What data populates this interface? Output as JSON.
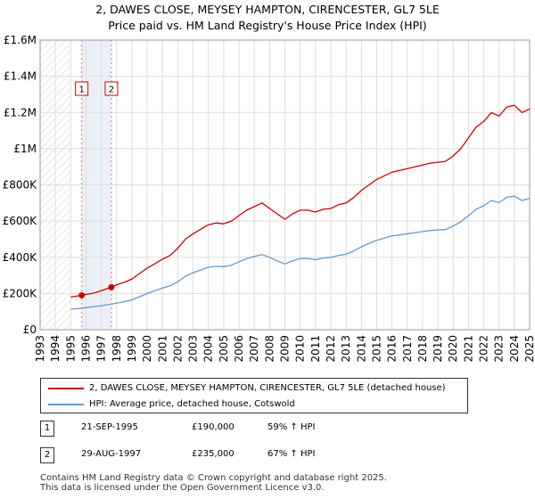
{
  "chart_data": {
    "type": "line",
    "title": "2, DAWES CLOSE, MEYSEY HAMPTON, CIRENCESTER, GL7 5LE",
    "subtitle": "Price paid vs. HM Land Registry's House Price Index (HPI)",
    "xlabel": "",
    "ylabel": "",
    "xlim": [
      1993,
      2025
    ],
    "ylim": [
      0,
      1600000
    ],
    "x_ticks": [
      "1993",
      "1994",
      "1995",
      "1996",
      "1997",
      "1998",
      "1999",
      "2000",
      "2001",
      "2002",
      "2003",
      "2004",
      "2005",
      "2006",
      "2007",
      "2008",
      "2009",
      "2010",
      "2011",
      "2012",
      "2013",
      "2014",
      "2015",
      "2016",
      "2017",
      "2018",
      "2019",
      "2020",
      "2021",
      "2022",
      "2023",
      "2024",
      "2025"
    ],
    "y_ticks": [
      {
        "value": 0,
        "label": "£0"
      },
      {
        "value": 200000,
        "label": "£200K"
      },
      {
        "value": 400000,
        "label": "£400K"
      },
      {
        "value": 600000,
        "label": "£600K"
      },
      {
        "value": 800000,
        "label": "£800K"
      },
      {
        "value": 1000000,
        "label": "£1M"
      },
      {
        "value": 1200000,
        "label": "£1.2M"
      },
      {
        "value": 1400000,
        "label": "£1.4M"
      },
      {
        "value": 1600000,
        "label": "£1.6M"
      }
    ],
    "grid": true,
    "shaded_before": 1995.0,
    "series": [
      {
        "name": "2, DAWES CLOSE, MEYSEY HAMPTON, CIRENCESTER, GL7 5LE (detached house)",
        "color": "#cc0000",
        "x": [
          1995.0,
          1995.72,
          1996.0,
          1996.5,
          1997.0,
          1997.66,
          1998.0,
          1998.5,
          1999.0,
          1999.5,
          2000.0,
          2000.5,
          2001.0,
          2001.5,
          2002.0,
          2002.5,
          2003.0,
          2003.5,
          2004.0,
          2004.5,
          2005.0,
          2005.5,
          2006.0,
          2006.5,
          2007.0,
          2007.5,
          2008.0,
          2008.5,
          2009.0,
          2009.5,
          2010.0,
          2010.5,
          2011.0,
          2011.5,
          2012.0,
          2012.5,
          2013.0,
          2013.5,
          2014.0,
          2014.5,
          2015.0,
          2015.5,
          2016.0,
          2016.5,
          2017.0,
          2017.5,
          2018.0,
          2018.5,
          2019.0,
          2019.5,
          2020.0,
          2020.5,
          2021.0,
          2021.5,
          2022.0,
          2022.5,
          2023.0,
          2023.5,
          2024.0,
          2024.5,
          2025.0
        ],
        "values": [
          180000,
          190000,
          195000,
          202000,
          215000,
          235000,
          248000,
          262000,
          280000,
          310000,
          340000,
          365000,
          390000,
          410000,
          450000,
          500000,
          530000,
          555000,
          580000,
          590000,
          585000,
          600000,
          630000,
          660000,
          680000,
          700000,
          670000,
          640000,
          610000,
          640000,
          660000,
          660000,
          650000,
          665000,
          670000,
          690000,
          700000,
          730000,
          770000,
          800000,
          830000,
          850000,
          870000,
          880000,
          890000,
          900000,
          910000,
          920000,
          925000,
          930000,
          960000,
          1000000,
          1060000,
          1120000,
          1150000,
          1200000,
          1180000,
          1230000,
          1240000,
          1200000,
          1220000
        ]
      },
      {
        "name": "HPI: Average price, detached house, Cotswold",
        "color": "#6699cc",
        "x": [
          1995.0,
          1995.72,
          1996.0,
          1996.5,
          1997.0,
          1997.66,
          1998.0,
          1998.5,
          1999.0,
          1999.5,
          2000.0,
          2000.5,
          2001.0,
          2001.5,
          2002.0,
          2002.5,
          2003.0,
          2003.5,
          2004.0,
          2004.5,
          2005.0,
          2005.5,
          2006.0,
          2006.5,
          2007.0,
          2007.5,
          2008.0,
          2008.5,
          2009.0,
          2009.5,
          2010.0,
          2010.5,
          2011.0,
          2011.5,
          2012.0,
          2012.5,
          2013.0,
          2013.5,
          2014.0,
          2014.5,
          2015.0,
          2015.5,
          2016.0,
          2016.5,
          2017.0,
          2017.5,
          2018.0,
          2018.5,
          2019.0,
          2019.5,
          2020.0,
          2020.5,
          2021.0,
          2021.5,
          2022.0,
          2022.5,
          2023.0,
          2023.5,
          2024.0,
          2024.5,
          2025.0
        ],
        "values": [
          113000,
          119000,
          122000,
          127000,
          133000,
          141000,
          147000,
          155000,
          165000,
          182000,
          200000,
          215000,
          230000,
          242000,
          265000,
          295000,
          315000,
          330000,
          345000,
          350000,
          348000,
          357000,
          375000,
          392000,
          405000,
          415000,
          400000,
          380000,
          363000,
          380000,
          393000,
          393000,
          387000,
          396000,
          400000,
          410000,
          417000,
          435000,
          458000,
          477000,
          494000,
          506000,
          518000,
          524000,
          530000,
          536000,
          542000,
          548000,
          551000,
          553000,
          572000,
          596000,
          630000,
          665000,
          685000,
          714000,
          702000,
          732000,
          738000,
          714000,
          726000
        ]
      }
    ],
    "sale_markers": [
      {
        "label": "1",
        "x": 1995.72,
        "value": 190000
      },
      {
        "label": "2",
        "x": 1997.66,
        "value": 235000
      }
    ]
  },
  "legend": [
    {
      "label": "2, DAWES CLOSE, MEYSEY HAMPTON, CIRENCESTER, GL7 5LE (detached house)",
      "color": "#cc0000"
    },
    {
      "label": "HPI: Average price, detached house, Cotswold",
      "color": "#6699cc"
    }
  ],
  "sales": [
    {
      "num": "1",
      "date": "21-SEP-1995",
      "price": "£190,000",
      "hpi": "59% ↑ HPI"
    },
    {
      "num": "2",
      "date": "29-AUG-1997",
      "price": "£235,000",
      "hpi": "67% ↑ HPI"
    }
  ],
  "footer": {
    "line1": "Contains HM Land Registry data © Crown copyright and database right 2025.",
    "line2": "This data is licensed under the Open Government Licence v3.0."
  }
}
